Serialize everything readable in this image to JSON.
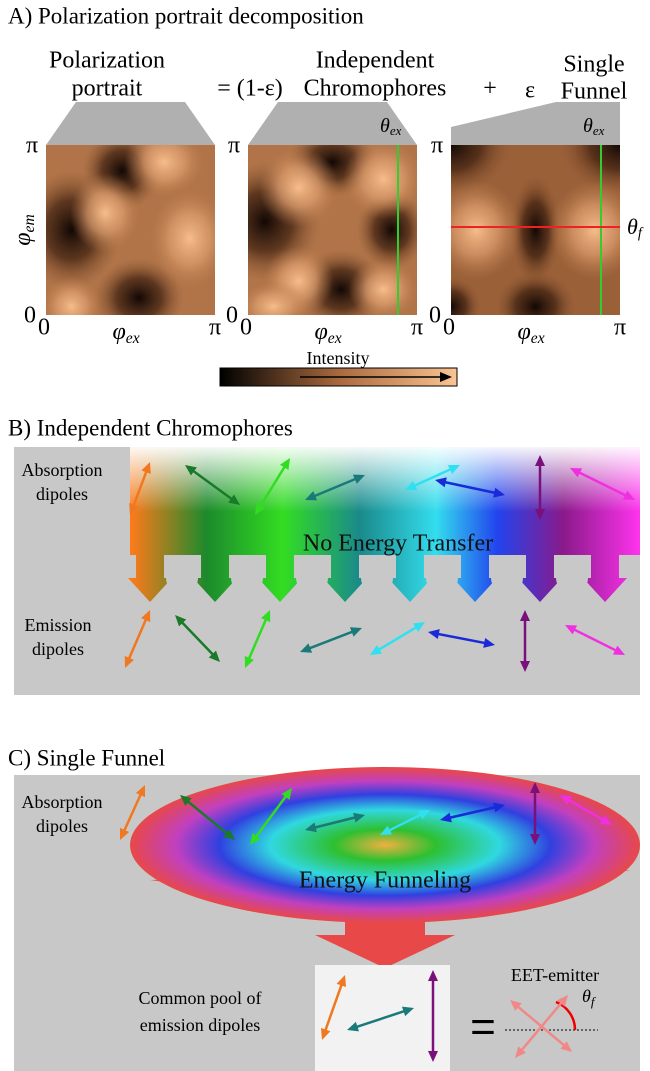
{
  "panel_a": {
    "title": "A) Polarization portrait decomposition",
    "terms": [
      [
        "Polarization",
        "portrait"
      ],
      [
        "Independent",
        "Chromophores"
      ],
      [
        "Single",
        "Funnel"
      ]
    ],
    "operators": [
      "= (1-ε)",
      "+",
      "ε"
    ],
    "axis": {
      "pi": "π",
      "zero": "0",
      "x_label": {
        "symbol": "φ",
        "subscript": "ex"
      },
      "y_label": {
        "symbol": "φ",
        "subscript": "em"
      }
    },
    "markers": {
      "theta_ex": {
        "symbol": "θ",
        "subscript": "ex"
      },
      "theta_f": {
        "symbol": "θ",
        "subscript": "f"
      }
    },
    "colorbar_label": "Intensity"
  },
  "panel_b": {
    "title": "B) Independent Chromophores",
    "absorption": [
      "Absorption",
      "dipoles"
    ],
    "center": "No Energy Transfer",
    "emission": [
      "Emission",
      "dipoles"
    ]
  },
  "panel_c": {
    "title": "C) Single Funnel",
    "absorption": [
      "Absorption",
      "dipoles"
    ],
    "center": "Energy Funneling",
    "pool": [
      "Common pool of",
      "emission dipoles"
    ],
    "equals": "=",
    "emitter": "EET-emitter",
    "angle": {
      "symbol": "θ",
      "subscript": "f"
    }
  }
}
